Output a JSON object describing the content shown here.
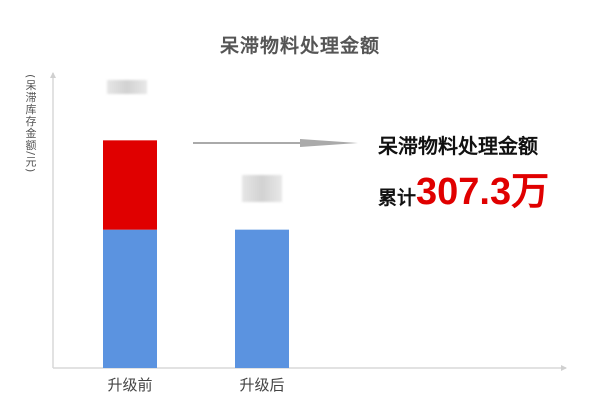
{
  "chart_data": {
    "type": "bar",
    "stacked": true,
    "title": "呆滞物料处理金额",
    "ylabel": "(呆滞库存金额/元)",
    "xlabel": "",
    "categories": [
      "升级前",
      "升级后"
    ],
    "series": [
      {
        "values": [
          476,
          476
        ],
        "color": "#5b93e0"
      },
      {
        "values": [
          307.3,
          0
        ],
        "color": "#e00000"
      }
    ],
    "ylim": [
      0,
      1015
    ],
    "grid": false,
    "value_labels_obscured": true,
    "annotation": {
      "line1": "呆滞物料处理金额",
      "prefix": "累计",
      "value": "307.3万",
      "value_color": "#e00000",
      "arrow_color": "#aaaaaa"
    }
  }
}
